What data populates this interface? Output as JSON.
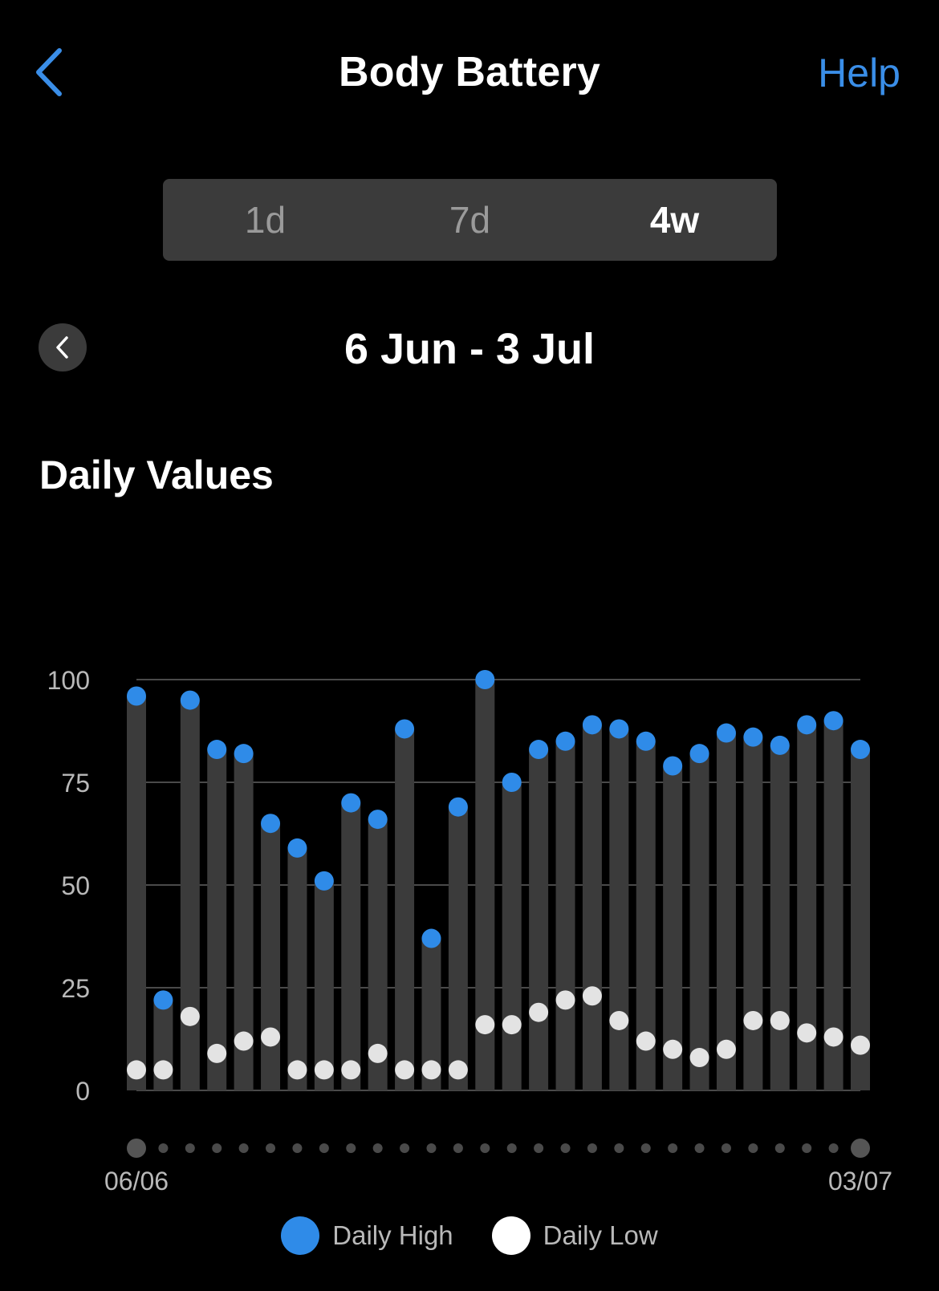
{
  "header": {
    "title": "Body Battery",
    "help_label": "Help",
    "back_icon": "chevron-left-icon"
  },
  "tabs": [
    {
      "label": "1d",
      "active": false
    },
    {
      "label": "7d",
      "active": false
    },
    {
      "label": "4w",
      "active": true
    }
  ],
  "range": {
    "label": "6 Jun - 3 Jul",
    "prev_icon": "chevron-left-icon"
  },
  "section": {
    "title": "Daily Values"
  },
  "colors": {
    "high": "#2f8be8",
    "low": "#e3e3e3",
    "bar": "#3b3b3b",
    "grid": "#4a4a4a",
    "accent": "#3a8ee8",
    "tick": "#b9b9b9"
  },
  "chart_data": {
    "type": "bar",
    "title": "Daily Values",
    "ylim": [
      0,
      100
    ],
    "y_ticks": [
      0,
      25,
      50,
      75,
      100
    ],
    "grid": true,
    "x_start_label": "06/06",
    "x_end_label": "03/07",
    "days": 28,
    "legend_placement": "bottom",
    "series": [
      {
        "name": "Daily High",
        "values": [
          96,
          22,
          95,
          83,
          82,
          65,
          59,
          51,
          70,
          66,
          88,
          37,
          69,
          100,
          75,
          83,
          85,
          89,
          88,
          85,
          79,
          82,
          87,
          86,
          84,
          89,
          90,
          83
        ]
      },
      {
        "name": "Daily Low",
        "values": [
          5,
          5,
          18,
          9,
          12,
          13,
          5,
          5,
          5,
          9,
          5,
          5,
          5,
          16,
          16,
          19,
          22,
          23,
          17,
          12,
          10,
          8,
          10,
          17,
          17,
          14,
          13,
          11
        ]
      }
    ]
  }
}
